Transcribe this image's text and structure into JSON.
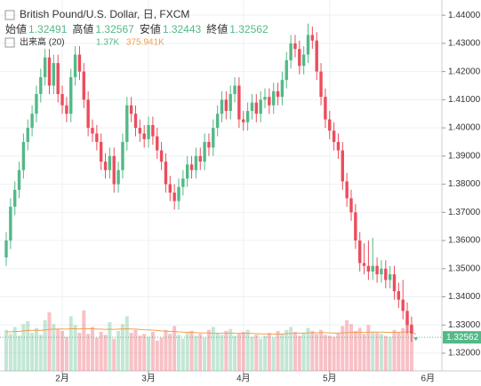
{
  "chart_data": {
    "type": "candlestick",
    "title": "British Pound/U.S. Dollar, 日, FXCM",
    "legend": [
      {
        "name": "始値",
        "value": "1.32491"
      },
      {
        "name": "高値",
        "value": "1.32567"
      },
      {
        "name": "安値",
        "value": "1.32443"
      },
      {
        "name": "終値",
        "value": "1.32562"
      }
    ],
    "categories": [
      null,
      null,
      null,
      null,
      null,
      null,
      null,
      null,
      null,
      null,
      null,
      null,
      null,
      "2月",
      null,
      null,
      null,
      null,
      null,
      null,
      null,
      null,
      null,
      null,
      null,
      null,
      null,
      null,
      null,
      null,
      null,
      null,
      null,
      "3月",
      null,
      null,
      null,
      null,
      null,
      null,
      null,
      null,
      null,
      null,
      null,
      null,
      null,
      null,
      null,
      null,
      null,
      null,
      null,
      null,
      null,
      "4月",
      null,
      null,
      null,
      null,
      null,
      null,
      null,
      null,
      null,
      null,
      null,
      null,
      null,
      null,
      null,
      null,
      null,
      null,
      null,
      "5月",
      null,
      null,
      null,
      null,
      null,
      null,
      null,
      null,
      null,
      null,
      null,
      null,
      null,
      null,
      null,
      null,
      null,
      null,
      null,
      null
    ],
    "next_month_label": "6月",
    "ohlc": [
      [
        1.354,
        1.363,
        1.351,
        1.36
      ],
      [
        1.36,
        1.375,
        1.357,
        1.372
      ],
      [
        1.372,
        1.381,
        1.369,
        1.378
      ],
      [
        1.378,
        1.388,
        1.375,
        1.385
      ],
      [
        1.385,
        1.398,
        1.382,
        1.395
      ],
      [
        1.395,
        1.403,
        1.392,
        1.4
      ],
      [
        1.4,
        1.408,
        1.397,
        1.405
      ],
      [
        1.405,
        1.415,
        1.402,
        1.412
      ],
      [
        1.412,
        1.421,
        1.409,
        1.418
      ],
      [
        1.418,
        1.428,
        1.415,
        1.425
      ],
      [
        1.425,
        1.428,
        1.412,
        1.415
      ],
      [
        1.415,
        1.426,
        1.412,
        1.423
      ],
      [
        1.423,
        1.426,
        1.409,
        1.412
      ],
      [
        1.412,
        1.415,
        1.405,
        1.408
      ],
      [
        1.408,
        1.411,
        1.402,
        1.405
      ],
      [
        1.405,
        1.421,
        1.402,
        1.418
      ],
      [
        1.418,
        1.429,
        1.415,
        1.426
      ],
      [
        1.426,
        1.429,
        1.417,
        1.42
      ],
      [
        1.42,
        1.423,
        1.407,
        1.41
      ],
      [
        1.41,
        1.413,
        1.397,
        1.4
      ],
      [
        1.4,
        1.403,
        1.395,
        1.398
      ],
      [
        1.398,
        1.401,
        1.392,
        1.395
      ],
      [
        1.395,
        1.398,
        1.385,
        1.388
      ],
      [
        1.388,
        1.391,
        1.382,
        1.385
      ],
      [
        1.385,
        1.393,
        1.382,
        1.39
      ],
      [
        1.39,
        1.393,
        1.377,
        1.38
      ],
      [
        1.38,
        1.388,
        1.377,
        1.385
      ],
      [
        1.385,
        1.398,
        1.382,
        1.395
      ],
      [
        1.395,
        1.411,
        1.392,
        1.408
      ],
      [
        1.408,
        1.411,
        1.402,
        1.405
      ],
      [
        1.405,
        1.408,
        1.397,
        1.4
      ],
      [
        1.4,
        1.403,
        1.395,
        1.398
      ],
      [
        1.398,
        1.401,
        1.393,
        1.396
      ],
      [
        1.396,
        1.404,
        1.393,
        1.401
      ],
      [
        1.401,
        1.404,
        1.394,
        1.397
      ],
      [
        1.397,
        1.4,
        1.389,
        1.392
      ],
      [
        1.392,
        1.395,
        1.385,
        1.388
      ],
      [
        1.388,
        1.391,
        1.377,
        1.38
      ],
      [
        1.38,
        1.383,
        1.374,
        1.377
      ],
      [
        1.377,
        1.38,
        1.371,
        1.374
      ],
      [
        1.374,
        1.382,
        1.371,
        1.379
      ],
      [
        1.379,
        1.385,
        1.376,
        1.382
      ],
      [
        1.382,
        1.39,
        1.379,
        1.387
      ],
      [
        1.387,
        1.39,
        1.382,
        1.385
      ],
      [
        1.385,
        1.393,
        1.382,
        1.39
      ],
      [
        1.39,
        1.393,
        1.385,
        1.388
      ],
      [
        1.388,
        1.398,
        1.385,
        1.395
      ],
      [
        1.395,
        1.398,
        1.39,
        1.393
      ],
      [
        1.393,
        1.403,
        1.39,
        1.4
      ],
      [
        1.4,
        1.408,
        1.397,
        1.405
      ],
      [
        1.405,
        1.413,
        1.402,
        1.41
      ],
      [
        1.41,
        1.413,
        1.403,
        1.406
      ],
      [
        1.406,
        1.415,
        1.403,
        1.412
      ],
      [
        1.412,
        1.418,
        1.409,
        1.415
      ],
      [
        1.415,
        1.418,
        1.4,
        1.403
      ],
      [
        1.403,
        1.406,
        1.399,
        1.402
      ],
      [
        1.402,
        1.409,
        1.399,
        1.406
      ],
      [
        1.406,
        1.412,
        1.403,
        1.409
      ],
      [
        1.409,
        1.412,
        1.402,
        1.405
      ],
      [
        1.405,
        1.413,
        1.402,
        1.41
      ],
      [
        1.41,
        1.414,
        1.407,
        1.411
      ],
      [
        1.411,
        1.414,
        1.405,
        1.408
      ],
      [
        1.408,
        1.416,
        1.405,
        1.413
      ],
      [
        1.413,
        1.416,
        1.408,
        1.411
      ],
      [
        1.411,
        1.42,
        1.408,
        1.417
      ],
      [
        1.417,
        1.427,
        1.414,
        1.424
      ],
      [
        1.424,
        1.433,
        1.421,
        1.43
      ],
      [
        1.43,
        1.433,
        1.425,
        1.428
      ],
      [
        1.428,
        1.431,
        1.419,
        1.422
      ],
      [
        1.422,
        1.429,
        1.419,
        1.426
      ],
      [
        1.426,
        1.437,
        1.423,
        1.433
      ],
      [
        1.433,
        1.436,
        1.428,
        1.431
      ],
      [
        1.431,
        1.434,
        1.417,
        1.42
      ],
      [
        1.42,
        1.423,
        1.408,
        1.411
      ],
      [
        1.411,
        1.414,
        1.4,
        1.403
      ],
      [
        1.403,
        1.406,
        1.396,
        1.399
      ],
      [
        1.399,
        1.402,
        1.392,
        1.395
      ],
      [
        1.395,
        1.398,
        1.389,
        1.392
      ],
      [
        1.392,
        1.395,
        1.378,
        1.381
      ],
      [
        1.381,
        1.384,
        1.372,
        1.375
      ],
      [
        1.375,
        1.378,
        1.367,
        1.37
      ],
      [
        1.37,
        1.373,
        1.357,
        1.36
      ],
      [
        1.36,
        1.363,
        1.349,
        1.352
      ],
      [
        1.352,
        1.359,
        1.348,
        1.351
      ],
      [
        1.351,
        1.36,
        1.346,
        1.349
      ],
      [
        1.349,
        1.361,
        1.346,
        1.351
      ],
      [
        1.351,
        1.354,
        1.345,
        1.348
      ],
      [
        1.348,
        1.353,
        1.345,
        1.35
      ],
      [
        1.35,
        1.353,
        1.343,
        1.346
      ],
      [
        1.346,
        1.351,
        1.343,
        1.348
      ],
      [
        1.348,
        1.351,
        1.339,
        1.342
      ],
      [
        1.342,
        1.345,
        1.336,
        1.339
      ],
      [
        1.339,
        1.346,
        1.332,
        1.335
      ],
      [
        1.335,
        1.338,
        1.327,
        1.33
      ],
      [
        1.33,
        1.333,
        1.324,
        1.327
      ],
      [
        1.32491,
        1.32567,
        1.32443,
        1.32562
      ]
    ],
    "volume": [
      420,
      380,
      450,
      360,
      480,
      510,
      390,
      440,
      370,
      520,
      600,
      480,
      430,
      410,
      350,
      560,
      470,
      390,
      620,
      380,
      450,
      340,
      400,
      370,
      500,
      330,
      410,
      480,
      560,
      390,
      420,
      360,
      380,
      350,
      400,
      310,
      340,
      420,
      380,
      460,
      370,
      330,
      390,
      410,
      360,
      380,
      340,
      420,
      450,
      390,
      370,
      410,
      430,
      360,
      380,
      400,
      420,
      350,
      370,
      330,
      360,
      390,
      340,
      410,
      380,
      420,
      450,
      400,
      360,
      390,
      440,
      410,
      380,
      420,
      370,
      360,
      350,
      390,
      460,
      520,
      480,
      410,
      440,
      380,
      470,
      400,
      390,
      380,
      360,
      350,
      420,
      390,
      440,
      520,
      480,
      1.37
    ],
    "volume_ma": [
      400,
      400,
      405,
      405,
      410,
      415,
      415,
      418,
      415,
      420,
      425,
      428,
      430,
      430,
      428,
      432,
      432,
      430,
      435,
      432,
      433,
      428,
      428,
      425,
      428,
      425,
      428,
      430,
      432,
      430,
      428,
      425,
      422,
      420,
      418,
      415,
      410,
      408,
      405,
      405,
      400,
      398,
      395,
      395,
      392,
      390,
      390,
      388,
      386,
      385,
      386,
      388,
      388,
      386,
      385,
      385,
      386,
      384,
      382,
      380,
      378,
      378,
      376,
      378,
      380,
      382,
      384,
      386,
      388,
      388,
      390,
      390,
      392,
      392,
      392,
      390,
      388,
      388,
      390,
      392,
      394,
      394,
      396,
      396,
      398,
      398,
      398,
      398,
      396,
      395,
      396,
      395,
      398,
      400,
      398,
      375.941
    ],
    "volume_label": "出来高 (20)",
    "volume_value_label": "1.37K",
    "volume_ma_label": "375.941K",
    "last_price_label": "1.32562",
    "ylim": [
      1.3137,
      1.4454
    ],
    "yticks": [
      {
        "value": 1.32,
        "label": "1.32000"
      },
      {
        "value": 1.33,
        "label": "1.33000"
      },
      {
        "value": 1.34,
        "label": "1.34000"
      },
      {
        "value": 1.35,
        "label": "1.35000"
      },
      {
        "value": 1.36,
        "label": "1.36000"
      },
      {
        "value": 1.37,
        "label": "1.37000"
      },
      {
        "value": 1.38,
        "label": "1.38000"
      },
      {
        "value": 1.39,
        "label": "1.39000"
      },
      {
        "value": 1.4,
        "label": "1.40000"
      },
      {
        "value": 1.41,
        "label": "1.41000"
      },
      {
        "value": 1.42,
        "label": "1.42000"
      },
      {
        "value": 1.43,
        "label": "1.43000"
      },
      {
        "value": 1.44,
        "label": "1.44000"
      }
    ],
    "up_color": "#53b987",
    "down_color": "#eb4d5c",
    "ma_color": "#f0a050",
    "grid": true
  }
}
